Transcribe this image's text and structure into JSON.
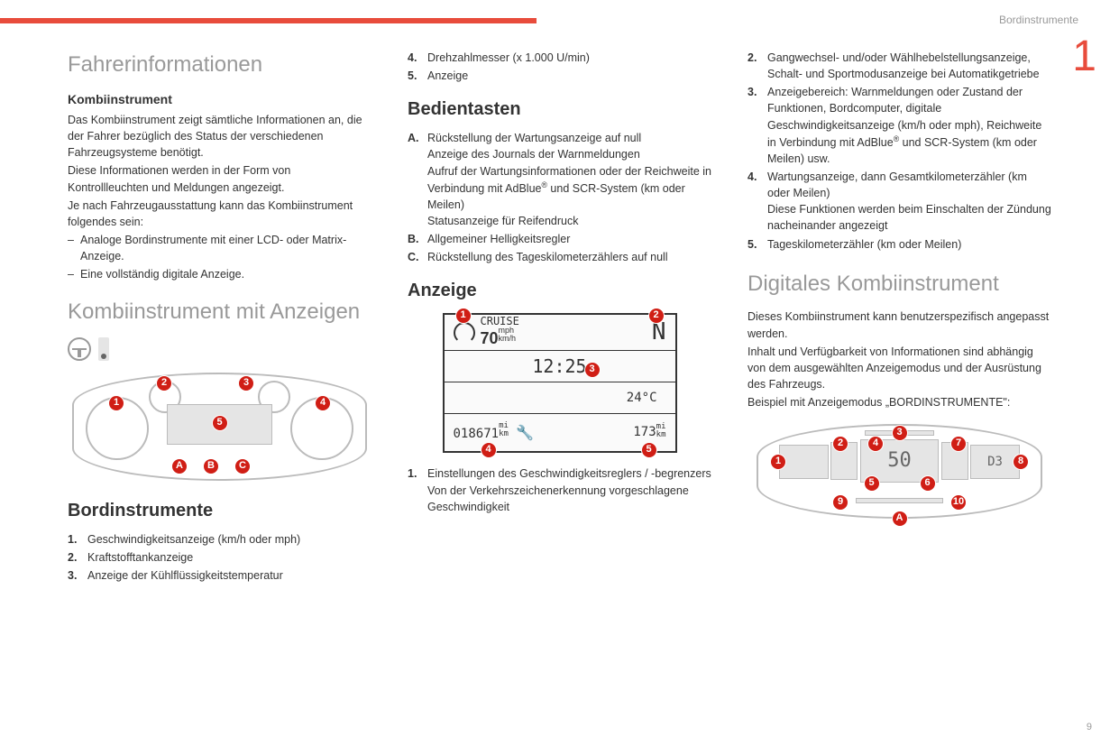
{
  "header": {
    "section_label": "Bordinstrumente",
    "chapter_number": "1",
    "page_number": "9"
  },
  "accent_color": "#e84c3c",
  "badge_color": "#d01e15",
  "col1": {
    "title": "Fahrerinformationen",
    "sub1": "Kombiinstrument",
    "p1": "Das Kombiinstrument zeigt sämtliche Informationen an, die der Fahrer bezüglich des Status der verschiedenen Fahrzeugsysteme benötigt.",
    "p2": "Diese Informationen werden in der Form von Kontrollleuchten und Meldungen angezeigt.",
    "p3": "Je nach Fahrzeugausstattung kann das Kombiinstrument folgendes sein:",
    "dash1": "Analoge Bordinstrumente mit einer LCD- oder Matrix-Anzeige.",
    "dash2": "Eine vollständig digitale Anzeige.",
    "title2": "Kombiinstrument mit Anzeigen",
    "sub2": "Bordinstrumente",
    "items": [
      {
        "n": "1.",
        "t": "Geschwindigkeitsanzeige (km/h oder mph)"
      },
      {
        "n": "2.",
        "t": "Kraftstofftankanzeige"
      },
      {
        "n": "3.",
        "t": "Anzeige der Kühlflüssigkeitstemperatur"
      }
    ],
    "cluster_badges": [
      "1",
      "2",
      "3",
      "4",
      "5",
      "A",
      "B",
      "C"
    ]
  },
  "col2": {
    "top_items": [
      {
        "n": "4.",
        "t": "Drehzahlmesser (x 1.000 U/min)"
      },
      {
        "n": "5.",
        "t": "Anzeige"
      }
    ],
    "h_bedien": "Bedientasten",
    "bedien": [
      {
        "n": "A.",
        "lines": [
          "Rückstellung der Wartungsanzeige auf null",
          "Anzeige des Journals der Warnmeldungen",
          "Aufruf der Wartungsinformationen oder der Reichweite in Verbindung mit AdBlue® und SCR-System (km oder Meilen)",
          "Statusanzeige für Reifendruck"
        ]
      },
      {
        "n": "B.",
        "lines": [
          "Allgemeiner Helligkeitsregler"
        ]
      },
      {
        "n": "C.",
        "lines": [
          "Rückstellung des Tageskilometerzählers auf null"
        ]
      }
    ],
    "h_anzeige": "Anzeige",
    "anzeige_display": {
      "cruise_label": "CRUISE",
      "cruise_speed": "70",
      "cruise_unit_top": "mph",
      "cruise_unit_bot": "km/h",
      "gear": "N",
      "time": "12:25",
      "temp": "24°C",
      "odo": "018671",
      "odo_unit_top": "mi",
      "odo_unit_bot": "km",
      "trip": "173",
      "trip_unit_top": "mi",
      "trip_unit_bot": "km"
    },
    "anzeige_items": [
      {
        "n": "1.",
        "lines": [
          "Einstellungen des Geschwindigkeitsreglers / -begrenzers",
          "Von der Verkehrszeichenerkennung vorgeschlagene Geschwindigkeit"
        ]
      }
    ]
  },
  "col3": {
    "top_items": [
      {
        "n": "2.",
        "t": "Gangwechsel- und/oder Wählhebelstellungsanzeige, Schalt- und Sportmodusanzeige bei Automatikgetriebe"
      },
      {
        "n": "3.",
        "t": "Anzeigebereich: Warnmeldungen oder Zustand der Funktionen, Bordcomputer, digitale Geschwindigkeitsanzeige (km/h oder mph), Reichweite in Verbindung mit AdBlue® und SCR-System (km oder Meilen) usw."
      },
      {
        "n": "4.",
        "t": "Wartungsanzeige, dann Gesamtkilometerzähler (km oder Meilen)\nDiese Funktionen werden beim Einschalten der Zündung nacheinander angezeigt"
      },
      {
        "n": "5.",
        "t": "Tageskilometerzähler (km oder Meilen)"
      }
    ],
    "title": "Digitales Kombiinstrument",
    "p1": "Dieses Kombiinstrument kann benutzerspezifisch angepasst werden.",
    "p2": "Inhalt und Verfügbarkeit von Informationen sind abhängig von dem ausgewählten Anzeigemodus und der Ausrüstung des Fahrzeugs.",
    "p3": "Beispiel mit Anzeigemodus „BORDINSTRUMENTE\":",
    "digital_speed": "50",
    "digital_gear": "D3",
    "digital_badges": [
      "1",
      "2",
      "3",
      "4",
      "5",
      "6",
      "7",
      "8",
      "9",
      "10",
      "A"
    ]
  }
}
